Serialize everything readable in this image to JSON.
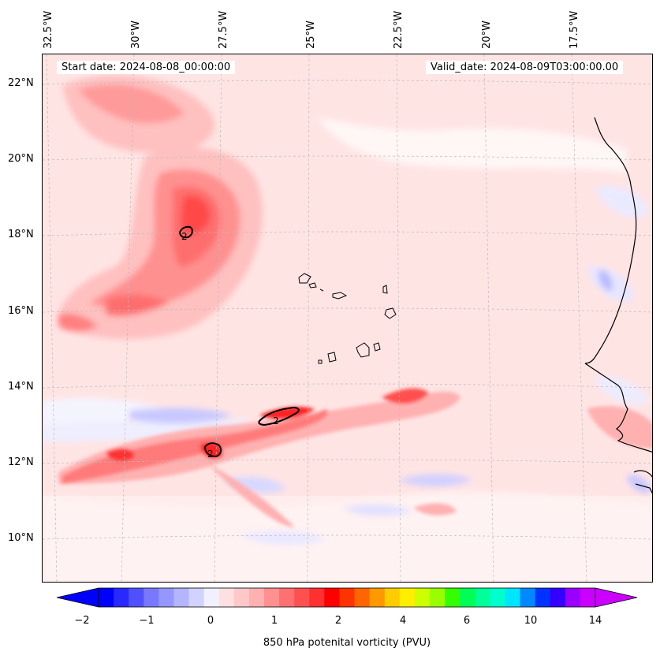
{
  "header": {
    "start_date": "Start date: 2024-08-08_00:00:00",
    "valid_date": "Valid_date: 2024-08-09T03:00:00.00"
  },
  "map": {
    "longitude_labels": [
      "32.5°W",
      "30°W",
      "27.5°W",
      "25°W",
      "22.5°W",
      "20°W",
      "17.5°W"
    ],
    "latitude_labels": [
      "22°N",
      "20°N",
      "18°N",
      "16°N",
      "14°N",
      "12°N",
      "10°N"
    ],
    "contour_labels": [
      "2",
      "2",
      "2"
    ],
    "background_color": "#ffeded",
    "coastline_color": "#000000",
    "gridline_style": "dashed light gray"
  },
  "colorbar": {
    "tick_labels": [
      "−2",
      "−1",
      "0",
      "1",
      "2",
      "4",
      "6",
      "10",
      "14"
    ],
    "label": "850 hPa potenital vorticity (PVU)",
    "colors": [
      "#0000ff",
      "#2828ff",
      "#5050ff",
      "#7878ff",
      "#9696ff",
      "#b4b4ff",
      "#d2d2ff",
      "#f0f0ff",
      "#ffe0e0",
      "#ffc8c8",
      "#ffb0b0",
      "#ff9090",
      "#ff7070",
      "#ff5050",
      "#ff3030",
      "#ff0000",
      "#ff3300",
      "#ff6600",
      "#ff9900",
      "#ffcc00",
      "#ffee00",
      "#ccff00",
      "#99ff00",
      "#33ff00",
      "#00ff55",
      "#00ff99",
      "#00ffcc",
      "#00e5ff",
      "#0088ff",
      "#0033ff",
      "#3300ff",
      "#9900ff",
      "#cc00ff"
    ],
    "under_color": "#0000ff",
    "over_color": "#cc00ff"
  }
}
